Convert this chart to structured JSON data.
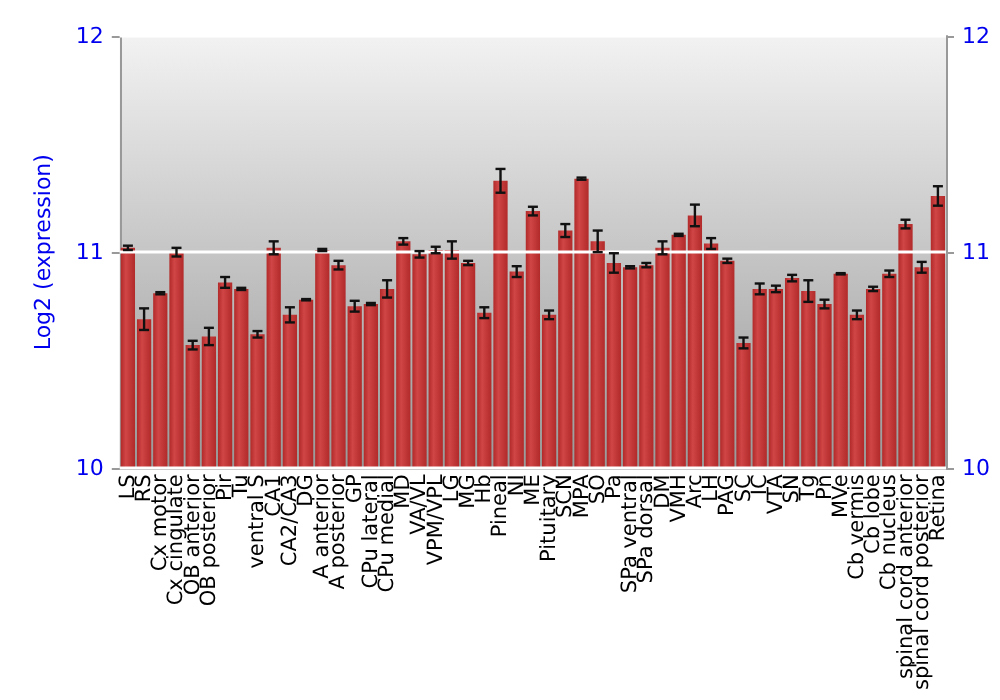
{
  "chart_data": {
    "type": "bar",
    "ylabel": "Log2 (expression)",
    "categories": [
      "LS",
      "RS",
      "Cx motor",
      "Cx cingulate",
      "OB anterior",
      "OB posterior",
      "Pir",
      "Tu",
      "ventral S",
      "CA1",
      "CA2/CA3",
      "DG",
      "A anterior",
      "A posterior",
      "GP",
      "CPu lateral",
      "CPu medial",
      "MD",
      "VA/VL",
      "VPM/VPL",
      "LG",
      "MG",
      "Hb",
      "Pineal",
      "NI",
      "ME",
      "Pituitary",
      "SCN",
      "MPA",
      "SO",
      "Pa",
      "SPa ventral",
      "SPa dorsal",
      "DM",
      "VMH",
      "Arc",
      "LH",
      "PAG",
      "SC",
      "IC",
      "VTA",
      "SN",
      "Tg",
      "Pn",
      "MVe",
      "Cb vermis",
      "Cb lobe",
      "Cb nucleus",
      "spinal cord anterior",
      "spinal cord posterior",
      "Retina"
    ],
    "values": [
      11.02,
      10.69,
      10.81,
      11.0,
      10.57,
      10.61,
      10.86,
      10.83,
      10.62,
      11.02,
      10.71,
      10.78,
      11.01,
      10.94,
      10.75,
      10.76,
      10.83,
      11.05,
      10.99,
      11.01,
      11.01,
      10.95,
      10.72,
      11.33,
      10.91,
      11.19,
      10.71,
      11.1,
      11.34,
      11.05,
      10.95,
      10.93,
      10.94,
      11.02,
      11.08,
      11.17,
      11.04,
      10.96,
      10.58,
      10.83,
      10.83,
      10.88,
      10.82,
      10.76,
      10.9,
      10.71,
      10.83,
      10.9,
      11.13,
      10.93,
      11.26
    ],
    "errors": [
      0.01,
      0.05,
      0.005,
      0.02,
      0.02,
      0.04,
      0.025,
      0.005,
      0.015,
      0.03,
      0.035,
      0.003,
      0.005,
      0.02,
      0.025,
      0.005,
      0.04,
      0.015,
      0.015,
      0.015,
      0.04,
      0.01,
      0.025,
      0.055,
      0.025,
      0.02,
      0.02,
      0.03,
      0.005,
      0.05,
      0.045,
      0.005,
      0.01,
      0.03,
      0.005,
      0.05,
      0.025,
      0.01,
      0.025,
      0.025,
      0.015,
      0.015,
      0.05,
      0.02,
      0.003,
      0.02,
      0.01,
      0.015,
      0.02,
      0.025,
      0.045
    ],
    "color": "#b22a2a",
    "ylim": [
      10,
      12
    ],
    "yticks": [
      10,
      11,
      12
    ],
    "y2lim": [
      10,
      12
    ],
    "y2ticks": [
      10,
      11,
      12
    ],
    "grid": "y"
  }
}
